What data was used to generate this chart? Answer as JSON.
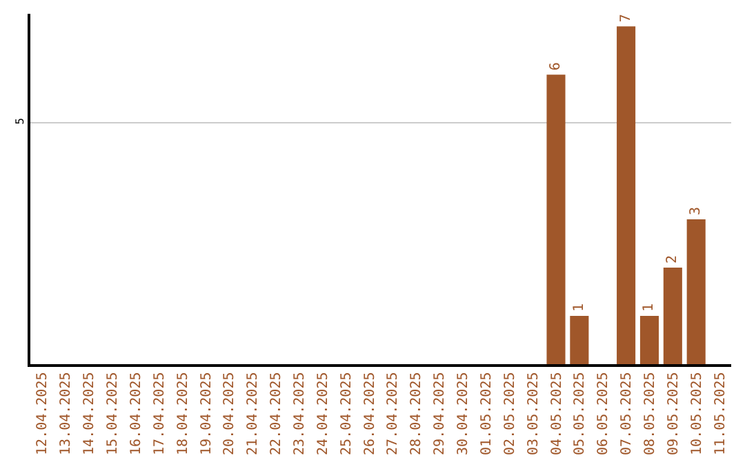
{
  "chart_data": {
    "type": "bar",
    "categories": [
      "12.04.2025",
      "13.04.2025",
      "14.04.2025",
      "15.04.2025",
      "16.04.2025",
      "17.04.2025",
      "18.04.2025",
      "19.04.2025",
      "20.04.2025",
      "21.04.2025",
      "22.04.2025",
      "23.04.2025",
      "24.04.2025",
      "25.04.2025",
      "26.04.2025",
      "27.04.2025",
      "28.04.2025",
      "29.04.2025",
      "30.04.2025",
      "01.05.2025",
      "02.05.2025",
      "03.05.2025",
      "04.05.2025",
      "05.05.2025",
      "06.05.2025",
      "07.05.2025",
      "08.05.2025",
      "09.05.2025",
      "10.05.2025",
      "11.05.2025"
    ],
    "values": [
      null,
      null,
      null,
      null,
      null,
      null,
      null,
      null,
      null,
      null,
      null,
      null,
      null,
      null,
      null,
      null,
      null,
      null,
      null,
      null,
      null,
      null,
      6,
      1,
      null,
      7,
      1,
      2,
      3,
      null
    ],
    "data_labels": true,
    "color": "#a0572a",
    "ylim": [
      0,
      7.26
    ],
    "yticks": [
      5
    ],
    "grid": "y",
    "legend": false
  }
}
